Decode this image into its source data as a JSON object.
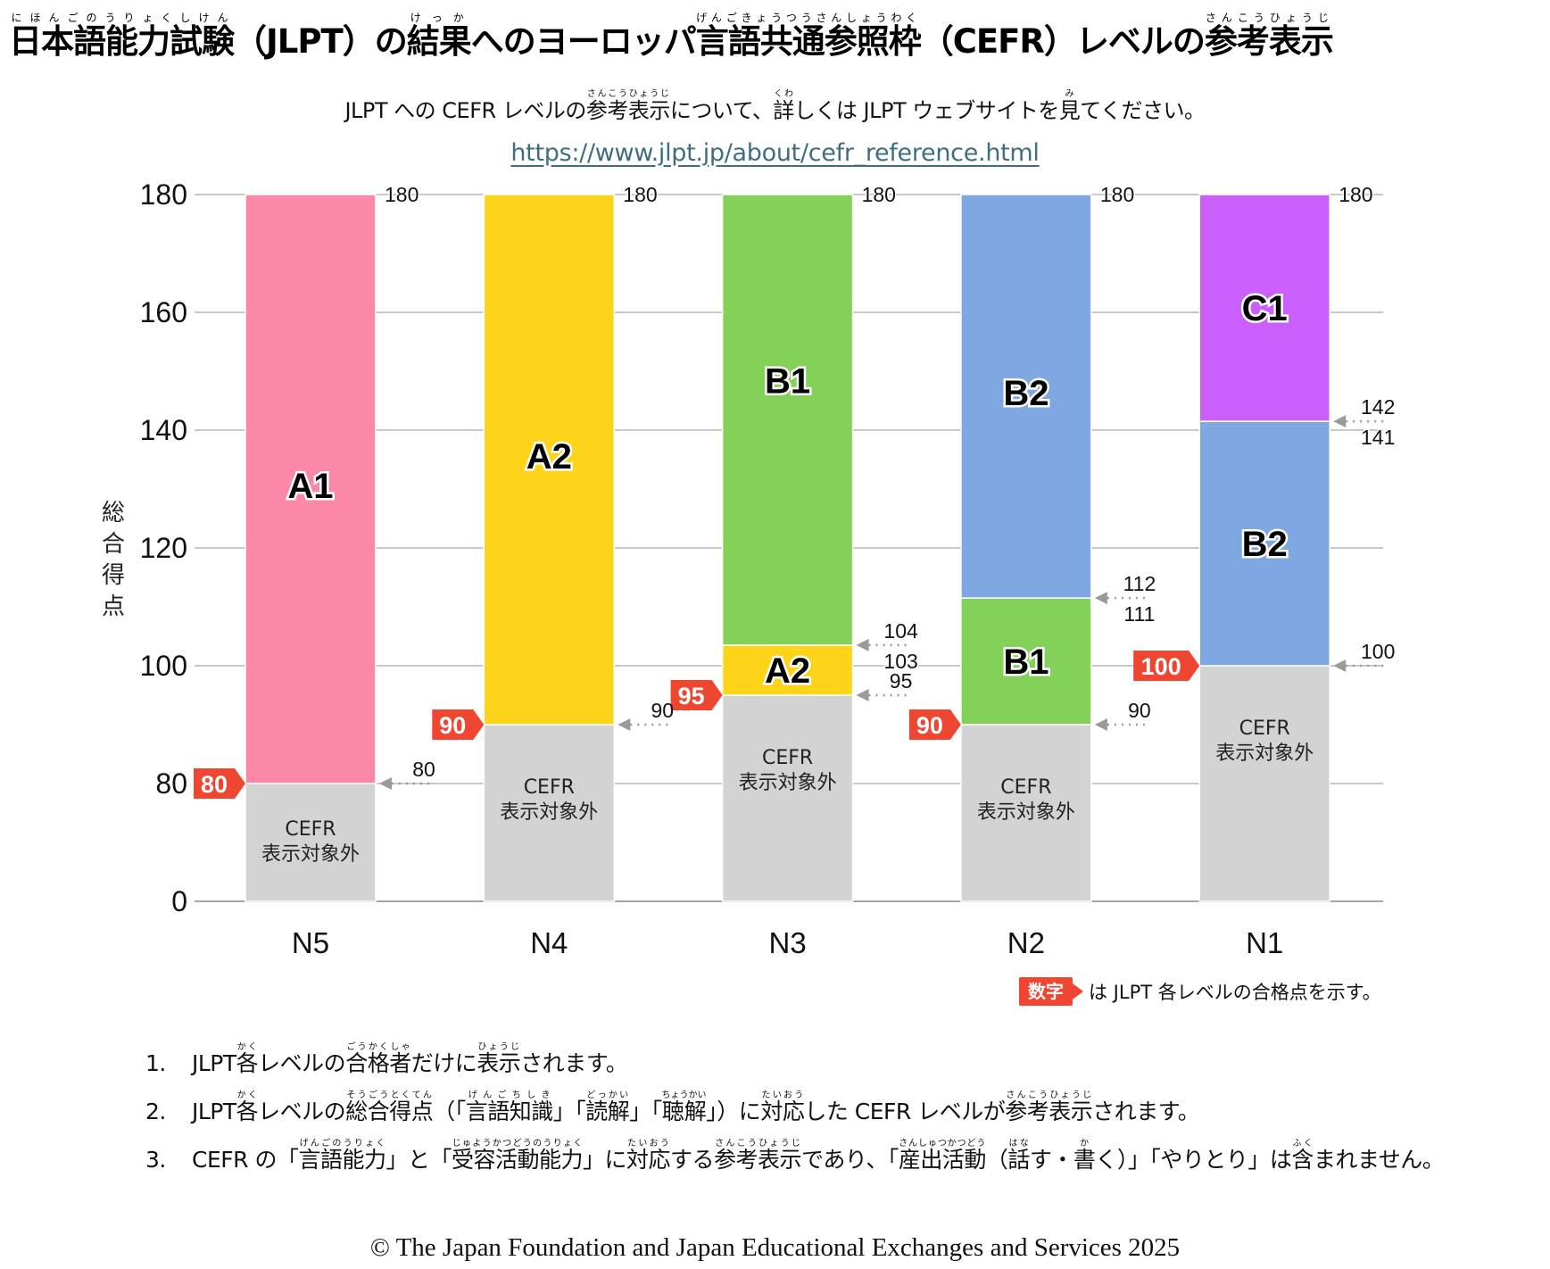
{
  "header": {
    "title_segments": [
      {
        "text": "日本語能力試験",
        "ruby": "にほんごのうりょくしけん"
      },
      {
        "text": "（JLPT）の"
      },
      {
        "text": "結果",
        "ruby": "けっか"
      },
      {
        "text": "へのヨーロッパ"
      },
      {
        "text": "言語共通参照枠",
        "ruby": "げんごきょうつうさんしょうわく"
      },
      {
        "text": "（CEFR）レベルの"
      },
      {
        "text": "参考表示",
        "ruby": "さんこうひょうじ"
      }
    ],
    "subtitle_segments": [
      {
        "text": "JLPT への CEFR レベルの"
      },
      {
        "text": "参考表示",
        "ruby": "さんこうひょうじ"
      },
      {
        "text": "について、"
      },
      {
        "text": "詳",
        "ruby": "くわ"
      },
      {
        "text": "しくは JLPT ウェブサイトを"
      },
      {
        "text": "見",
        "ruby": "み"
      },
      {
        "text": "てください。"
      }
    ],
    "url": "https://www.jlpt.jp/about/cefr_reference.html"
  },
  "colors": {
    "A1": "#fb88a9",
    "A2": "#fdd41a",
    "B1": "#84d15a",
    "B2": "#7fa8e2",
    "C1": "#cb5ffc",
    "not_shown": "#d3d3d3",
    "pass_flag": "#ee4631",
    "gridline": "#a6a6a6",
    "arrow": "#9a9a9a",
    "link": "#3e6e80"
  },
  "chart_data": {
    "type": "bar",
    "stacked": true,
    "title": "",
    "xlabel": "",
    "ylabel": "総合得点",
    "ylim": [
      0,
      180
    ],
    "y_ticks": [
      0,
      80,
      100,
      120,
      140,
      160,
      180
    ],
    "y_axis_note": "axis break between 0 and 80",
    "grid": true,
    "categories": [
      "N5",
      "N4",
      "N3",
      "N2",
      "N1"
    ],
    "not_shown_label": [
      "CEFR",
      "表示対象外"
    ],
    "bars": [
      {
        "level": "N5",
        "pass_mark": 80,
        "segments": [
          {
            "cefr": "not_shown",
            "from": 0,
            "to": 80
          },
          {
            "cefr": "A1",
            "from": 80,
            "to": 180
          }
        ],
        "boundary_labels": [
          {
            "at": 80,
            "lower": null,
            "upper": "80"
          },
          {
            "at": 180,
            "upper": "180"
          }
        ]
      },
      {
        "level": "N4",
        "pass_mark": 90,
        "segments": [
          {
            "cefr": "not_shown",
            "from": 0,
            "to": 90
          },
          {
            "cefr": "A2",
            "from": 90,
            "to": 180
          }
        ],
        "boundary_labels": [
          {
            "at": 90,
            "upper": "90"
          },
          {
            "at": 180,
            "upper": "180"
          }
        ]
      },
      {
        "level": "N3",
        "pass_mark": 95,
        "segments": [
          {
            "cefr": "not_shown",
            "from": 0,
            "to": 95
          },
          {
            "cefr": "A2",
            "from": 95,
            "to": 103.5
          },
          {
            "cefr": "B1",
            "from": 103.5,
            "to": 180
          }
        ],
        "boundary_labels": [
          {
            "at": 95,
            "upper": "95"
          },
          {
            "at": 103.5,
            "upper": "104",
            "lower": "103"
          },
          {
            "at": 180,
            "upper": "180"
          }
        ]
      },
      {
        "level": "N2",
        "pass_mark": 90,
        "segments": [
          {
            "cefr": "not_shown",
            "from": 0,
            "to": 90
          },
          {
            "cefr": "B1",
            "from": 90,
            "to": 111.5
          },
          {
            "cefr": "B2",
            "from": 111.5,
            "to": 180
          }
        ],
        "boundary_labels": [
          {
            "at": 90,
            "upper": "90"
          },
          {
            "at": 111.5,
            "upper": "112",
            "lower": "111"
          },
          {
            "at": 180,
            "upper": "180"
          }
        ]
      },
      {
        "level": "N1",
        "pass_mark": 100,
        "segments": [
          {
            "cefr": "not_shown",
            "from": 0,
            "to": 100
          },
          {
            "cefr": "B2",
            "from": 100,
            "to": 141.5
          },
          {
            "cefr": "C1",
            "from": 141.5,
            "to": 180
          }
        ],
        "boundary_labels": [
          {
            "at": 100,
            "upper": "100"
          },
          {
            "at": 141.5,
            "upper": "142",
            "lower": "141"
          },
          {
            "at": 180,
            "upper": "180"
          }
        ]
      }
    ],
    "legend": {
      "flag_text": "数字",
      "text": "は JLPT 各レベルの合格点を示す。",
      "placement": "bottom-right"
    }
  },
  "notes": [
    {
      "num": "1.",
      "segments": [
        {
          "text": "JLPT"
        },
        {
          "text": "各",
          "ruby": "かく"
        },
        {
          "text": "レベルの"
        },
        {
          "text": "合格者",
          "ruby": "ごうかくしゃ"
        },
        {
          "text": "だけに"
        },
        {
          "text": "表示",
          "ruby": "ひょうじ"
        },
        {
          "text": "されます。"
        }
      ]
    },
    {
      "num": "2.",
      "segments": [
        {
          "text": "JLPT"
        },
        {
          "text": "各",
          "ruby": "かく"
        },
        {
          "text": "レベルの"
        },
        {
          "text": "総合得点",
          "ruby": "そうごうとくてん"
        },
        {
          "text": "（「"
        },
        {
          "text": "言語知識",
          "ruby": "げんごちしき"
        },
        {
          "text": "」「"
        },
        {
          "text": "読解",
          "ruby": "どっかい"
        },
        {
          "text": "」「"
        },
        {
          "text": "聴解",
          "ruby": "ちょうかい"
        },
        {
          "text": "」）に"
        },
        {
          "text": "対応",
          "ruby": "たいおう"
        },
        {
          "text": "した CEFR レベルが"
        },
        {
          "text": "参考表示",
          "ruby": "さんこうひょうじ"
        },
        {
          "text": "されます。"
        }
      ]
    },
    {
      "num": "3.",
      "segments": [
        {
          "text": "CEFR の「"
        },
        {
          "text": "言語能力",
          "ruby": "げんごのうりょく"
        },
        {
          "text": "」と「"
        },
        {
          "text": "受容活動能力",
          "ruby": "じゅようかつどうのうりょく"
        },
        {
          "text": "」に"
        },
        {
          "text": "対応",
          "ruby": "たいおう"
        },
        {
          "text": "する"
        },
        {
          "text": "参考表示",
          "ruby": "さんこうひょうじ"
        },
        {
          "text": "であり、「"
        },
        {
          "text": "産出活動",
          "ruby": "さんしゅつかつどう"
        },
        {
          "text": "（"
        },
        {
          "text": "話",
          "ruby": "はな"
        },
        {
          "text": "す・"
        },
        {
          "text": "書",
          "ruby": "か"
        },
        {
          "text": "く）」「やりとり」は"
        },
        {
          "text": "含",
          "ruby": "ふく"
        },
        {
          "text": "まれません。"
        }
      ]
    }
  ],
  "footer": {
    "copyright": "© The Japan Foundation and Japan Educational Exchanges and Services 2025"
  }
}
